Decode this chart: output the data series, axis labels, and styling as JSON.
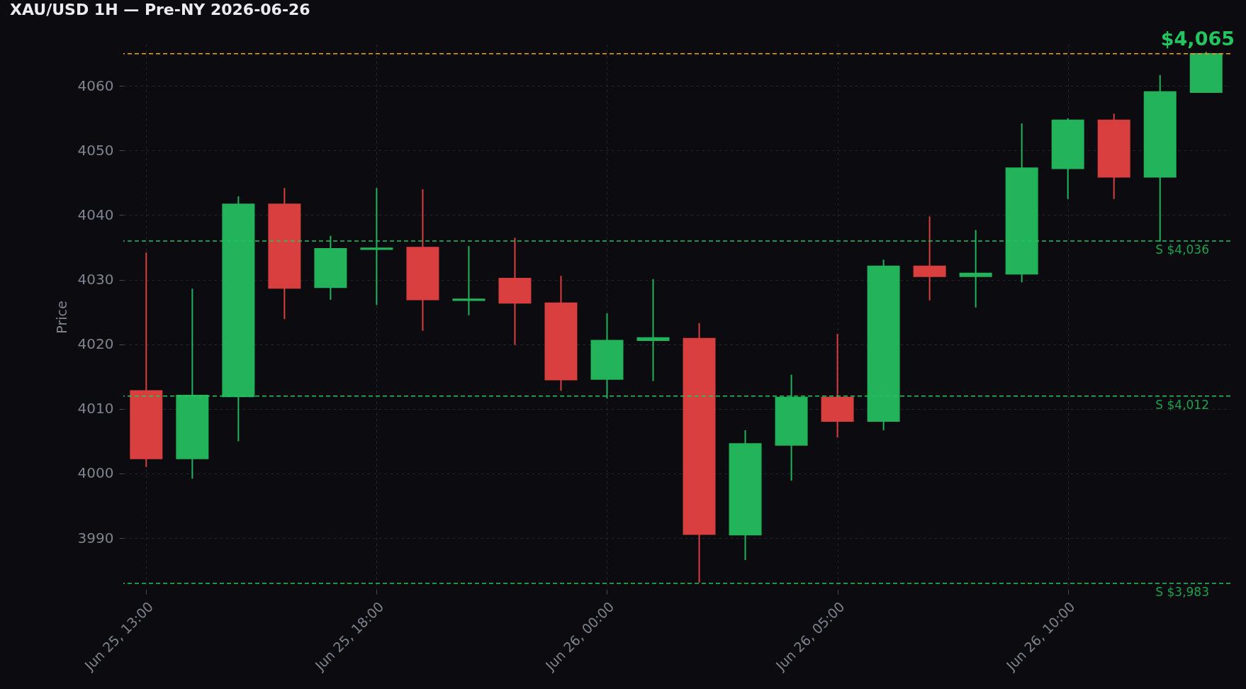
{
  "chart_data": {
    "type": "candlestick",
    "title": "XAU/USD 1H — Pre-NY 2026-06-26",
    "ylabel": "Price",
    "categories": [
      "Jun 25, 13:00",
      null,
      null,
      null,
      null,
      "Jun 25, 18:00",
      null,
      null,
      null,
      null,
      "Jun 26, 00:00",
      null,
      null,
      null,
      null,
      "Jun 26, 05:00",
      null,
      null,
      null,
      null,
      "Jun 26, 10:00",
      null,
      null,
      null
    ],
    "ohlc": [
      [
        4012.8,
        4034.2,
        4001.0,
        4002.3
      ],
      [
        4002.3,
        4028.6,
        3999.2,
        4012.1
      ],
      [
        4011.9,
        4042.9,
        4005.0,
        4041.7
      ],
      [
        4041.7,
        4044.2,
        4023.9,
        4028.7
      ],
      [
        4028.8,
        4036.8,
        4026.9,
        4034.8
      ],
      [
        4034.7,
        4044.2,
        4026.1,
        4034.9
      ],
      [
        4035.0,
        4044.0,
        4022.1,
        4026.9
      ],
      [
        4026.8,
        4035.2,
        4024.5,
        4027.0
      ],
      [
        4030.2,
        4036.5,
        4019.9,
        4026.4
      ],
      [
        4026.4,
        4030.6,
        4012.8,
        4014.5
      ],
      [
        4014.6,
        4024.8,
        4011.6,
        4020.6
      ],
      [
        4020.6,
        4030.1,
        4014.3,
        4021.0
      ],
      [
        4020.9,
        4023.3,
        3983.1,
        3990.6
      ],
      [
        3990.5,
        4006.7,
        3986.6,
        4004.6
      ],
      [
        4004.4,
        4015.3,
        3998.9,
        4011.8
      ],
      [
        4011.8,
        4021.6,
        4005.6,
        4008.1
      ],
      [
        4008.1,
        4033.1,
        4006.7,
        4032.1
      ],
      [
        4032.1,
        4039.8,
        4026.8,
        4030.5
      ],
      [
        4030.5,
        4037.7,
        4025.7,
        4031.0
      ],
      [
        4030.9,
        4054.2,
        4029.6,
        4047.3
      ],
      [
        4047.2,
        4055.0,
        4042.5,
        4054.7
      ],
      [
        4054.7,
        4055.7,
        4042.5,
        4045.9
      ],
      [
        4045.9,
        4061.7,
        4035.9,
        4059.1
      ],
      [
        4059.0,
        4065.3,
        4059.0,
        4065.0
      ]
    ],
    "colors": [
      "#d93f3f",
      "#22b35b",
      "#22b35b",
      "#d93f3f",
      "#22b35b",
      "#22b35b",
      "#d93f3f",
      "#22b35b",
      "#d93f3f",
      "#d93f3f",
      "#22b35b",
      "#22b35b",
      "#d93f3f",
      "#22b35b",
      "#22b35b",
      "#d93f3f",
      "#22b35b",
      "#d93f3f",
      "#22b35b",
      "#22b35b",
      "#22b35b",
      "#d93f3f",
      "#22b35b",
      "#22b35b"
    ],
    "ylim": [
      3982,
      4066.5
    ],
    "yticks": [
      3990,
      4000,
      4010,
      4020,
      4030,
      4040,
      4050,
      4060
    ],
    "grid": true,
    "ref_lines": [
      {
        "axis": "y",
        "value": 4065,
        "color": "#f5a30b",
        "line_style": "dashed"
      },
      {
        "axis": "y",
        "value": 4036,
        "label": "S $4,036",
        "color": "#22c55e",
        "line_style": "dashed"
      },
      {
        "axis": "y",
        "value": 4012,
        "label": "S $4,012",
        "color": "#22c55e",
        "line_style": "dashed"
      },
      {
        "axis": "y",
        "value": 3983,
        "label": "S $3,983",
        "color": "#22c55e",
        "line_style": "dashed"
      }
    ],
    "annotations": [
      {
        "text": "$4,065",
        "y": 4065
      }
    ]
  }
}
